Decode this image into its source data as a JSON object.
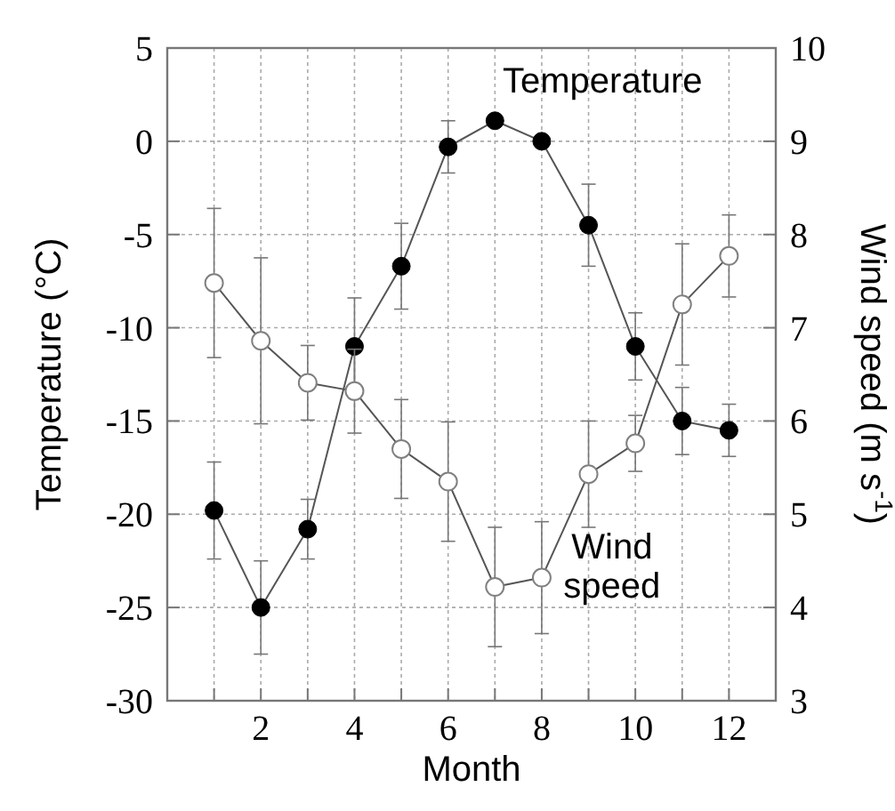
{
  "chart_data": {
    "type": "line",
    "xlabel": "Month",
    "ylabel": "Temperature (°C)",
    "y2label": "Wind speed (m s$^{-1}$)",
    "x": [
      1,
      2,
      3,
      4,
      5,
      6,
      7,
      8,
      9,
      10,
      11,
      12
    ],
    "xlim": [
      0,
      13
    ],
    "xticks": [
      {
        "value": 1,
        "label": null
      },
      2,
      {
        "value": 3,
        "label": null
      },
      4,
      {
        "value": 5,
        "label": null
      },
      6,
      {
        "value": 7,
        "label": null
      },
      8,
      {
        "value": 9,
        "label": null
      },
      10,
      {
        "value": 11,
        "label": null
      },
      12
    ],
    "ylim": [
      -30,
      5
    ],
    "yticks": [
      -30,
      -25,
      -20,
      -15,
      -10,
      -5,
      0,
      5
    ],
    "y2lim": [
      3,
      10
    ],
    "y2ticks": [
      3,
      4,
      5,
      6,
      7,
      8,
      9,
      10
    ],
    "grid": true,
    "legend": false,
    "marker": "circle",
    "line_style": "solid",
    "series": [
      {
        "name": "Temperature",
        "color": "#000000",
        "values": [
          -19.8,
          -25.0,
          -20.8,
          -11.0,
          -6.7,
          -0.3,
          1.1,
          0.0,
          -4.5,
          -11.0,
          -15.0,
          -15.5
        ],
        "errors": [
          2.6,
          2.5,
          1.6,
          2.6,
          2.3,
          1.4,
          null,
          null,
          2.2,
          1.8,
          1.8,
          1.4
        ]
      },
      {
        "name": "Wind speed",
        "color": "#808080",
        "axis": "y2",
        "values": [
          7.48,
          6.86,
          6.41,
          6.32,
          5.7,
          5.35,
          4.22,
          4.32,
          5.43,
          5.76,
          7.25,
          7.77
        ],
        "errors": [
          0.8,
          0.89,
          0.4,
          0.45,
          0.53,
          0.64,
          0.64,
          0.6,
          0.57,
          0.3,
          0.65,
          0.44
        ]
      }
    ]
  }
}
